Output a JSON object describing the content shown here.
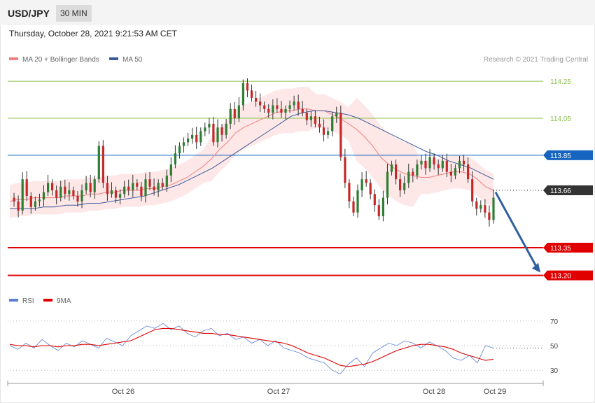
{
  "header": {
    "symbol": "USD/JPY",
    "timeframe": "30 MIN",
    "timestamp": "Thursday, October 28, 2021 9:21:53 AM CET"
  },
  "legend": {
    "ma_label": "MA 20 + Bollinger Bands",
    "ma50_label": "MA 50",
    "copyright": "Research © 2021 Trading Central",
    "rsi_label": "RSI",
    "rsi_ma_label": "9MA"
  },
  "colors": {
    "band_fill": "#fde3e3",
    "ma20": "#f08080",
    "ma50": "#3c5c9c",
    "candle_up": "#2e7d32",
    "candle_down": "#c62828",
    "resistance_green": "#8bc34a",
    "pivot_blue": "#1565c0",
    "support_red": "#e00000",
    "current_dark": "#333333",
    "arrow": "#2f5f9f",
    "rsi": "#5b7fd6",
    "rsi_ma": "#e00000"
  },
  "chart_data": [
    {
      "type": "candlestick",
      "title": "USD/JPY 30 MIN",
      "y_range": [
        113.1,
        114.33
      ],
      "x_ticks": [
        "Oct 26",
        "Oct 27",
        "Oct 28",
        "Oct 29"
      ],
      "levels": [
        {
          "value": 114.25,
          "label": "114.25",
          "kind": "resistance",
          "color": "#8bc34a"
        },
        {
          "value": 114.05,
          "label": "114.05",
          "kind": "resistance",
          "color": "#8bc34a"
        },
        {
          "value": 113.85,
          "label": "113.85",
          "kind": "pivot",
          "color": "#1565c0"
        },
        {
          "value": 113.66,
          "label": "113.66",
          "kind": "last",
          "color": "#333333"
        },
        {
          "value": 113.35,
          "label": "113.35",
          "kind": "support",
          "color": "#e00000"
        },
        {
          "value": 113.2,
          "label": "113.20",
          "kind": "support",
          "color": "#e00000"
        }
      ],
      "forecast": {
        "from": 113.65,
        "to": 113.2,
        "direction": "down"
      },
      "price_path": [
        113.62,
        113.6,
        113.55,
        113.72,
        113.63,
        113.57,
        113.6,
        113.61,
        113.65,
        113.7,
        113.66,
        113.62,
        113.68,
        113.64,
        113.66,
        113.63,
        113.6,
        113.66,
        113.7,
        113.65,
        113.72,
        113.9,
        113.7,
        113.64,
        113.66,
        113.62,
        113.64,
        113.68,
        113.66,
        113.7,
        113.68,
        113.63,
        113.72,
        113.68,
        113.66,
        113.7,
        113.68,
        113.74,
        113.8,
        113.86,
        113.9,
        113.92,
        113.94,
        113.96,
        113.92,
        113.98,
        114.0,
        114.02,
        113.92,
        114.0,
        113.96,
        114.02,
        114.1,
        114.05,
        114.12,
        114.24,
        114.2,
        114.16,
        114.14,
        114.12,
        114.1,
        114.08,
        114.12,
        114.1,
        114.08,
        114.1,
        114.12,
        114.14,
        114.1,
        114.08,
        114.04,
        114.06,
        114.02,
        114.0,
        113.96,
        113.98,
        114.06,
        114.08,
        113.84,
        113.7,
        113.6,
        113.54,
        113.66,
        113.72,
        113.7,
        113.64,
        113.58,
        113.52,
        113.62,
        113.76,
        113.8,
        113.72,
        113.66,
        113.7,
        113.76,
        113.74,
        113.8,
        113.82,
        113.78,
        113.84,
        113.8,
        113.78,
        113.82,
        113.76,
        113.74,
        113.78,
        113.82,
        113.8,
        113.72,
        113.6,
        113.56,
        113.58,
        113.54,
        113.5,
        113.62
      ],
      "ma20": [
        113.6,
        113.61,
        113.61,
        113.62,
        113.62,
        113.62,
        113.62,
        113.63,
        113.63,
        113.63,
        113.64,
        113.64,
        113.65,
        113.65,
        113.66,
        113.66,
        113.66,
        113.67,
        113.67,
        113.68,
        113.69,
        113.71,
        113.73,
        113.76,
        113.79,
        113.83,
        113.88,
        113.92,
        113.97,
        114.0,
        114.02,
        114.04,
        114.06,
        114.08,
        114.09,
        114.09,
        114.1,
        114.1,
        114.09,
        114.09,
        114.07,
        114.05,
        114.02,
        113.99,
        113.95,
        113.9,
        113.84,
        113.8,
        113.77,
        113.75,
        113.74,
        113.73,
        113.73,
        113.74,
        113.75,
        113.76,
        113.76,
        113.75,
        113.72,
        113.68,
        113.66
      ],
      "ma50": [
        113.56,
        113.56,
        113.56,
        113.57,
        113.57,
        113.58,
        113.58,
        113.59,
        113.59,
        113.6,
        113.61,
        113.62,
        113.63,
        113.65,
        113.67,
        113.69,
        113.72,
        113.75,
        113.78,
        113.82,
        113.86,
        113.9,
        113.94,
        113.98,
        114.02,
        114.06,
        114.08,
        114.09,
        114.09,
        114.08,
        114.07,
        114.05,
        114.02,
        113.99,
        113.96,
        113.93,
        113.9,
        113.87,
        113.85,
        113.82,
        113.8,
        113.78,
        113.75,
        113.72
      ]
    },
    {
      "type": "line",
      "title": "RSI",
      "y_range": [
        25,
        75
      ],
      "y_ticks": [
        70,
        50,
        30
      ],
      "series": [
        {
          "name": "RSI",
          "values": [
            50,
            47,
            52,
            48,
            55,
            50,
            46,
            52,
            49,
            54,
            51,
            48,
            56,
            53,
            50,
            58,
            62,
            66,
            64,
            68,
            63,
            66,
            60,
            57,
            62,
            64,
            58,
            60,
            55,
            57,
            52,
            55,
            50,
            54,
            48,
            46,
            44,
            40,
            38,
            36,
            30,
            27,
            35,
            40,
            33,
            44,
            48,
            52,
            50,
            54,
            52,
            48,
            53,
            50,
            46,
            40,
            38,
            42,
            36,
            50,
            48
          ]
        },
        {
          "name": "9MA",
          "values": [
            51,
            50,
            50,
            49,
            50,
            50,
            49,
            50,
            50,
            51,
            51,
            50,
            51,
            52,
            53,
            54,
            57,
            60,
            63,
            64,
            64,
            63,
            62,
            61,
            60,
            60,
            59,
            59,
            58,
            57,
            56,
            55,
            54,
            53,
            52,
            50,
            47,
            44,
            42,
            40,
            37,
            34,
            33,
            34,
            35,
            37,
            40,
            43,
            46,
            48,
            50,
            51,
            51,
            50,
            49,
            47,
            44,
            42,
            40,
            38,
            39
          ]
        }
      ]
    }
  ]
}
